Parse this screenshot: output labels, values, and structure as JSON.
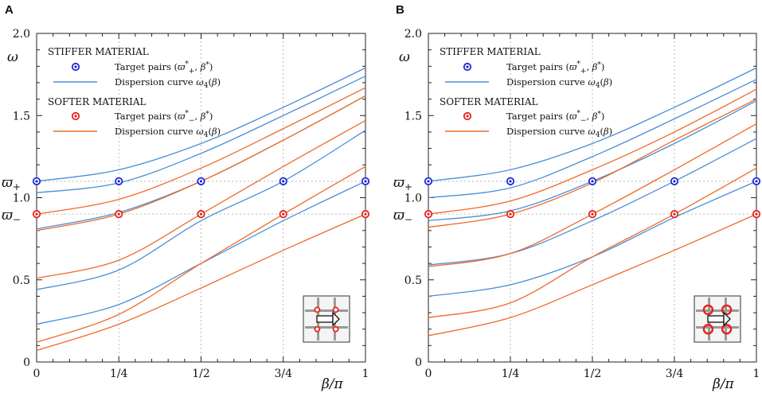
{
  "colors": {
    "blue": "#4c8fd6",
    "orange": "#ee6a2b",
    "marker_blue": "#1e2bd6",
    "marker_red": "#e4231d",
    "grid": "#bbbbbb"
  },
  "chart_data": [
    {
      "type": "line",
      "panel_label": "A",
      "xlabel": "β/π",
      "ylabel": "ω",
      "xlim": [
        0,
        1
      ],
      "ylim": [
        0,
        2
      ],
      "x_ticks": [
        0,
        0.25,
        0.5,
        0.75,
        1
      ],
      "x_tick_labels": [
        "0",
        "1/4",
        "1/2",
        "3/4",
        "1"
      ],
      "y_ticks": [
        0,
        0.5,
        1.0,
        1.5,
        2.0
      ],
      "y_tick_labels": [
        "0",
        "0.5",
        "1.0",
        "1.5",
        "2.0"
      ],
      "y_special_labels": [
        {
          "value": 1.1,
          "text": "ϖ+"
        },
        {
          "value": 0.9,
          "text": "ϖ−"
        }
      ],
      "legend": {
        "stiffer_heading": "STIFFER MATERIAL",
        "stiffer_pairs": "Target pairs (ϖ*+, β*)",
        "stiffer_curve": "Dispersion curve ω4(β)",
        "softer_heading": "SOFTER MATERIAL",
        "softer_pairs": "Target pairs (ϖ*−, β*)",
        "softer_curve": "Dispersion curve ω4(β)"
      },
      "series": [
        {
          "name": "stiffer 1",
          "material": "stiffer",
          "x": [
            0,
            0.25,
            0.5,
            0.75,
            1
          ],
          "y": [
            1.1,
            1.17,
            1.33,
            1.55,
            1.79
          ]
        },
        {
          "name": "stiffer 2",
          "material": "stiffer",
          "x": [
            0,
            0.25,
            0.5,
            0.75,
            1
          ],
          "y": [
            1.03,
            1.09,
            1.27,
            1.5,
            1.74
          ]
        },
        {
          "name": "stiffer 3",
          "material": "stiffer",
          "x": [
            0,
            0.25,
            0.5,
            0.75,
            1
          ],
          "y": [
            0.81,
            0.91,
            1.1,
            1.35,
            1.62
          ]
        },
        {
          "name": "stiffer 4",
          "material": "stiffer",
          "x": [
            0,
            0.25,
            0.5,
            0.75,
            1
          ],
          "y": [
            0.44,
            0.56,
            0.86,
            1.1,
            1.41
          ]
        },
        {
          "name": "stiffer 5",
          "material": "stiffer",
          "x": [
            0,
            0.25,
            0.5,
            0.75,
            1
          ],
          "y": [
            0.23,
            0.35,
            0.6,
            0.86,
            1.1
          ]
        },
        {
          "name": "softer 1",
          "material": "softer",
          "x": [
            0,
            0.25,
            0.5,
            0.75,
            1
          ],
          "y": [
            0.9,
            0.99,
            1.18,
            1.42,
            1.67
          ]
        },
        {
          "name": "softer 2",
          "material": "softer",
          "x": [
            0,
            0.25,
            0.5,
            0.75,
            1
          ],
          "y": [
            0.8,
            0.9,
            1.1,
            1.35,
            1.62
          ]
        },
        {
          "name": "softer 3",
          "material": "softer",
          "x": [
            0,
            0.25,
            0.5,
            0.75,
            1
          ],
          "y": [
            0.51,
            0.62,
            0.9,
            1.19,
            1.47
          ]
        },
        {
          "name": "softer 4",
          "material": "softer",
          "x": [
            0,
            0.25,
            0.5,
            0.75,
            1
          ],
          "y": [
            0.12,
            0.29,
            0.6,
            0.9,
            1.19
          ]
        },
        {
          "name": "softer 5",
          "material": "softer",
          "x": [
            0,
            0.25,
            0.5,
            0.75,
            1
          ],
          "y": [
            0.07,
            0.23,
            0.45,
            0.68,
            0.9
          ]
        }
      ],
      "target_pairs_stiffer": {
        "x": [
          0,
          0.25,
          0.5,
          0.75,
          1
        ],
        "y": 1.1
      },
      "target_pairs_softer": {
        "x": [
          0,
          0.25,
          0.5,
          0.75,
          1
        ],
        "y": 0.9
      },
      "inset": {
        "variant": "small",
        "description": "unit cell with four small inclusions"
      }
    },
    {
      "type": "line",
      "panel_label": "B",
      "xlabel": "β/π",
      "ylabel": "ω",
      "xlim": [
        0,
        1
      ],
      "ylim": [
        0,
        2
      ],
      "x_ticks": [
        0,
        0.25,
        0.5,
        0.75,
        1
      ],
      "x_tick_labels": [
        "0",
        "1/4",
        "1/2",
        "3/4",
        "1"
      ],
      "y_ticks": [
        0,
        0.5,
        1.0,
        1.5,
        2.0
      ],
      "y_tick_labels": [
        "0",
        "0.5",
        "1.0",
        "1.5",
        "2.0"
      ],
      "y_special_labels": [
        {
          "value": 1.1,
          "text": "ϖ+"
        },
        {
          "value": 0.9,
          "text": "ϖ−"
        }
      ],
      "legend": {
        "stiffer_heading": "STIFFER MATERIAL",
        "stiffer_pairs": "Target pairs (ϖ*+, β*)",
        "stiffer_curve": "Dispersion curve ω4(β)",
        "softer_heading": "SOFTER MATERIAL",
        "softer_pairs": "Target pairs (ϖ*−, β*)",
        "softer_curve": "Dispersion curve ω4(β)"
      },
      "series": [
        {
          "name": "stiffer 1",
          "material": "stiffer",
          "x": [
            0,
            0.25,
            0.5,
            0.75,
            1
          ],
          "y": [
            1.1,
            1.17,
            1.33,
            1.55,
            1.79
          ]
        },
        {
          "name": "stiffer 2",
          "material": "stiffer",
          "x": [
            0,
            0.25,
            0.5,
            0.75,
            1
          ],
          "y": [
            1.0,
            1.06,
            1.25,
            1.48,
            1.72
          ]
        },
        {
          "name": "stiffer 3",
          "material": "stiffer",
          "x": [
            0,
            0.25,
            0.5,
            0.75,
            1
          ],
          "y": [
            0.86,
            0.92,
            1.1,
            1.33,
            1.59
          ]
        },
        {
          "name": "stiffer 4",
          "material": "stiffer",
          "x": [
            0,
            0.25,
            0.5,
            0.75,
            1
          ],
          "y": [
            0.59,
            0.66,
            0.86,
            1.1,
            1.36
          ]
        },
        {
          "name": "stiffer 5",
          "material": "stiffer",
          "x": [
            0,
            0.25,
            0.5,
            0.75,
            1
          ],
          "y": [
            0.4,
            0.47,
            0.64,
            0.88,
            1.1
          ]
        },
        {
          "name": "softer 1",
          "material": "softer",
          "x": [
            0,
            0.25,
            0.5,
            0.75,
            1
          ],
          "y": [
            0.9,
            0.98,
            1.17,
            1.4,
            1.66
          ]
        },
        {
          "name": "softer 2",
          "material": "softer",
          "x": [
            0,
            0.25,
            0.5,
            0.75,
            1
          ],
          "y": [
            0.82,
            0.9,
            1.09,
            1.35,
            1.6
          ]
        },
        {
          "name": "softer 3",
          "material": "softer",
          "x": [
            0,
            0.25,
            0.5,
            0.75,
            1
          ],
          "y": [
            0.58,
            0.66,
            0.9,
            1.17,
            1.45
          ]
        },
        {
          "name": "softer 4",
          "material": "softer",
          "x": [
            0,
            0.25,
            0.5,
            0.75,
            1
          ],
          "y": [
            0.27,
            0.36,
            0.64,
            0.9,
            1.18
          ]
        },
        {
          "name": "softer 5",
          "material": "softer",
          "x": [
            0,
            0.25,
            0.5,
            0.75,
            1
          ],
          "y": [
            0.16,
            0.27,
            0.47,
            0.68,
            0.9
          ]
        }
      ],
      "target_pairs_stiffer": {
        "x": [
          0,
          0.25,
          0.5,
          0.75,
          1
        ],
        "y": 1.1
      },
      "target_pairs_softer": {
        "x": [
          0,
          0.25,
          0.5,
          0.75,
          1
        ],
        "y": 0.9
      },
      "inset": {
        "variant": "large",
        "description": "unit cell with four large ring inclusions"
      }
    }
  ]
}
